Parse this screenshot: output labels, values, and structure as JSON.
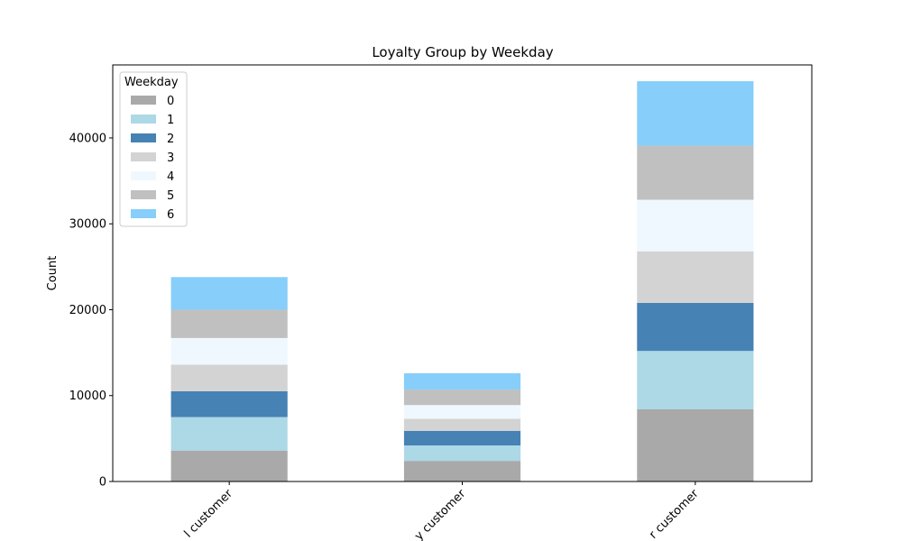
{
  "chart_data": {
    "type": "bar",
    "stacked": true,
    "title": "Loyalty Group by Weekday",
    "xlabel": "",
    "ylabel": "Count",
    "ylim": [
      0,
      48500
    ],
    "yticks": [
      0,
      10000,
      20000,
      30000,
      40000
    ],
    "categories": [
      "Loyal customer",
      "Regular customer",
      "New customer"
    ],
    "category_labels_visible": [
      "l customer",
      "y customer",
      "r customer"
    ],
    "legend": {
      "title": "Weekday",
      "placement": "upper-left"
    },
    "grid": false,
    "series": [
      {
        "name": "0",
        "color": "#a9a9a9",
        "values": [
          3600,
          2400,
          8400
        ]
      },
      {
        "name": "1",
        "color": "#add8e6",
        "values": [
          3900,
          1800,
          6800
        ]
      },
      {
        "name": "2",
        "color": "#4682b4",
        "values": [
          3000,
          1700,
          5600
        ]
      },
      {
        "name": "3",
        "color": "#d3d3d3",
        "values": [
          3100,
          1400,
          6000
        ]
      },
      {
        "name": "4",
        "color": "#f0f8ff",
        "values": [
          3100,
          1600,
          6000
        ]
      },
      {
        "name": "5",
        "color": "#c0c0c0",
        "values": [
          3300,
          1800,
          6300
        ]
      },
      {
        "name": "6",
        "color": "#87cefa",
        "values": [
          3800,
          1900,
          7500
        ]
      }
    ]
  }
}
